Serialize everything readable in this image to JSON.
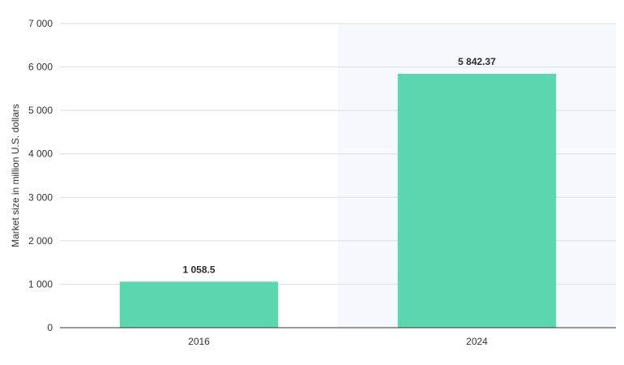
{
  "chart_data": {
    "type": "bar",
    "title": "",
    "xlabel": "",
    "ylabel": "Market size in million U.S. dollars",
    "categories": [
      "2016",
      "2024"
    ],
    "values": [
      1058.5,
      5842.37
    ],
    "value_labels": [
      "1 058.5",
      "5 842.37"
    ],
    "ylim": [
      0,
      7000
    ],
    "yticks": [
      0,
      1000,
      2000,
      3000,
      4000,
      5000,
      6000,
      7000
    ],
    "ytick_labels": [
      "0",
      "1 000",
      "2 000",
      "3 000",
      "4 000",
      "5 000",
      "6 000",
      "7 000"
    ],
    "grid": true,
    "highlighted_category": "2024",
    "colors": {
      "bar": "#5cd6ae",
      "gridline": "#dddddd",
      "axis": "#333333",
      "highlight_band": "#f5f8fd"
    }
  }
}
